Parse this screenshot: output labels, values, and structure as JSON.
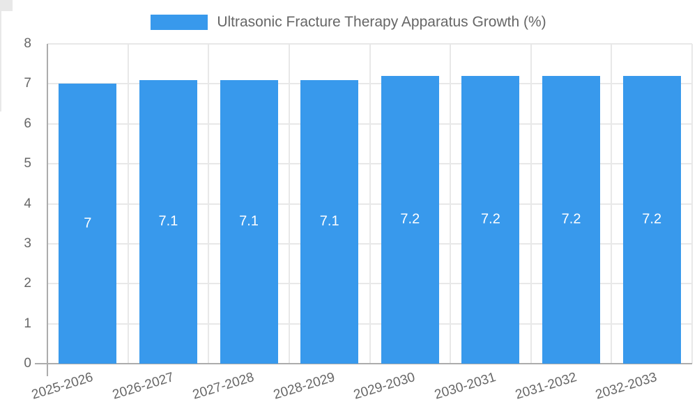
{
  "legend": {
    "label": "Ultrasonic Fracture Therapy Apparatus Growth (%)"
  },
  "colors": {
    "bar": "#3899EC",
    "grid": "#E8E8E8",
    "axis": "#ACACAC",
    "text": "#666666",
    "value_label": "#FFFFFF",
    "background": "#FFFFFF"
  },
  "chart_data": {
    "type": "bar",
    "title": "Ultrasonic Fracture Therapy Apparatus Growth (%)",
    "legend_position": "top",
    "xlabel": "",
    "ylabel": "",
    "categories": [
      "2025-2026",
      "2026-2027",
      "2027-2028",
      "2028-2029",
      "2029-2030",
      "2030-2031",
      "2031-2032",
      "2032-2033"
    ],
    "values": [
      7,
      7.1,
      7.1,
      7.1,
      7.2,
      7.2,
      7.2,
      7.2
    ],
    "value_labels": [
      "7",
      "7.1",
      "7.1",
      "7.1",
      "7.2",
      "7.2",
      "7.2",
      "7.2"
    ],
    "ylim": [
      0,
      8
    ],
    "yticks": [
      0,
      1,
      2,
      3,
      4,
      5,
      6,
      7,
      8
    ],
    "grid": true,
    "bar_color": "#3899EC"
  }
}
